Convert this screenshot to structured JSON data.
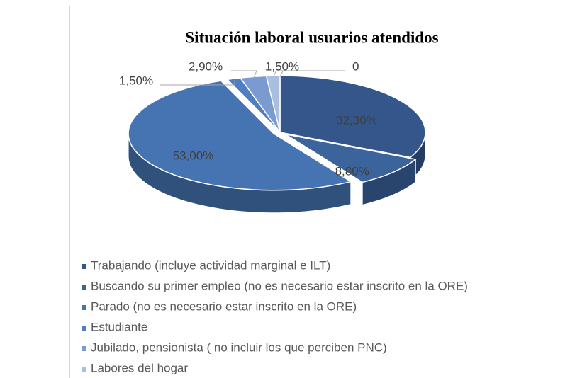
{
  "chart_data": {
    "type": "pie",
    "title": "Situación laboral usuarios atendidos",
    "categories": [
      "Trabajando (incluye actividad marginal e ILT)",
      "Buscando su primer empleo (no es necesario estar inscrito en la ORE)",
      "Parado (no es necesario estar inscrito en la ORE)",
      "Estudiante",
      "Jubilado, pensionista ( no incluir los que perciben PNC)",
      "Labores del hogar",
      null
    ],
    "values": [
      32.3,
      8.8,
      53,
      1.5,
      2.9,
      1.5,
      0
    ],
    "value_labels": [
      "32,30%",
      "8,80%",
      "53,00%",
      "1,50%",
      "2,90%",
      "1,50%",
      "0"
    ],
    "colors": [
      "#34568a",
      "#3b639c",
      "#4674b2",
      "#4f7fc0",
      "#7b9bd0",
      "#a9bfe2",
      "#c9d6ee"
    ],
    "legend": "bottom"
  }
}
